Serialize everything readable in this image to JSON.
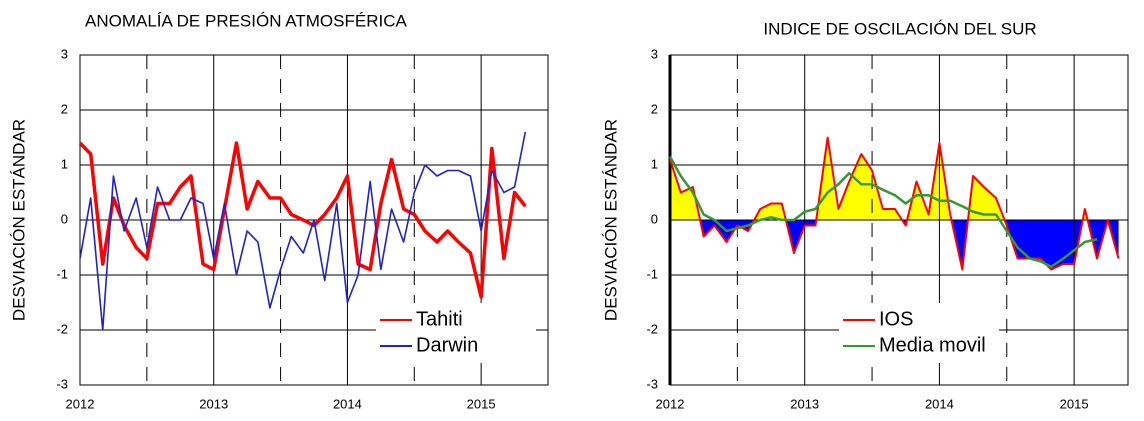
{
  "chart_data": [
    {
      "type": "line",
      "title": "ANOMALÍA DE PRESIÓN ATMOSFÉRICA",
      "y_label": "DESVIACIÓN ESTÁNDAR",
      "x": [
        2012,
        2012.08,
        2012.17,
        2012.25,
        2012.33,
        2012.42,
        2012.5,
        2012.58,
        2012.67,
        2012.75,
        2012.83,
        2012.92,
        2013,
        2013.08,
        2013.17,
        2013.25,
        2013.33,
        2013.42,
        2013.5,
        2013.58,
        2013.67,
        2013.75,
        2013.83,
        2013.92,
        2014,
        2014.08,
        2014.17,
        2014.25,
        2014.33,
        2014.42,
        2014.5,
        2014.58,
        2014.67,
        2014.75,
        2014.83,
        2014.92,
        2015,
        2015.08,
        2015.17,
        2015.25,
        2015.33
      ],
      "series": [
        {
          "name": "Tahiti",
          "color": "#ff0000",
          "values": [
            1.4,
            1.2,
            -0.8,
            0.4,
            -0.1,
            -0.5,
            -0.7,
            0.3,
            0.3,
            0.6,
            0.8,
            -0.8,
            -0.9,
            0.2,
            1.4,
            0.2,
            0.7,
            0.4,
            0.4,
            0.1,
            0,
            -0.1,
            0.1,
            0.4,
            0.8,
            -0.8,
            -0.9,
            0.3,
            1.1,
            0.2,
            0.1,
            -0.2,
            -0.4,
            -0.2,
            -0.4,
            -0.6,
            -1.4,
            1.3,
            -0.7,
            0.5,
            0.25
          ]
        },
        {
          "name": "Darwin",
          "color": "#2222cc",
          "values": [
            -0.7,
            0.4,
            -2.0,
            0.8,
            -0.2,
            0.4,
            -0.5,
            0.6,
            0,
            0,
            0.4,
            0.3,
            -0.7,
            0.3,
            -1.0,
            -0.2,
            -0.4,
            -1.6,
            -0.9,
            -0.3,
            -0.6,
            0,
            -1.1,
            0.3,
            -1.5,
            -1.0,
            0.7,
            -0.9,
            0.2,
            -0.4,
            0.5,
            1.0,
            0.8,
            0.9,
            0.9,
            0.8,
            -0.2,
            0.9,
            0.5,
            0.6,
            1.6
          ]
        }
      ],
      "xlim": [
        2012,
        2015.5
      ],
      "xticks": [
        2012,
        2013,
        2014,
        2015
      ],
      "minor_xticks": [
        2012.5,
        2013.5,
        2014.5
      ],
      "ylim": [
        -3,
        3
      ],
      "yticks": [
        -3,
        -2,
        -1,
        0,
        1,
        2,
        3
      ],
      "grid": true,
      "legend": "lower right"
    },
    {
      "type": "area",
      "title": "INDICE DE OSCILACIÓN DEL SUR",
      "y_label": "DESVIACIÓN ESTÁNDAR",
      "x": [
        2012,
        2012.08,
        2012.17,
        2012.25,
        2012.33,
        2012.42,
        2012.5,
        2012.58,
        2012.67,
        2012.75,
        2012.83,
        2012.92,
        2013,
        2013.08,
        2013.17,
        2013.25,
        2013.33,
        2013.42,
        2013.5,
        2013.58,
        2013.67,
        2013.75,
        2013.83,
        2013.92,
        2014,
        2014.08,
        2014.17,
        2014.25,
        2014.33,
        2014.42,
        2014.5,
        2014.58,
        2014.67,
        2014.75,
        2014.83,
        2014.92,
        2015,
        2015.08,
        2015.17,
        2015.25,
        2015.33
      ],
      "series": [
        {
          "name": "IOS",
          "color": "#ff0000",
          "fill_positive": "#ffff00",
          "fill_negative": "#0000ff",
          "values": [
            1.1,
            0.5,
            0.6,
            -0.3,
            -0.1,
            -0.4,
            -0.1,
            -0.2,
            0.2,
            0.3,
            0.3,
            -0.6,
            -0.1,
            -0.1,
            1.5,
            0.2,
            0.7,
            1.2,
            0.9,
            0.2,
            0.2,
            -0.1,
            0.7,
            0.1,
            1.4,
            0.1,
            -0.9,
            0.8,
            0.6,
            0.4,
            -0.1,
            -0.7,
            -0.7,
            -0.7,
            -0.9,
            -0.8,
            -0.8,
            0.2,
            -0.7,
            0,
            -0.7
          ]
        },
        {
          "name": "Media movil",
          "color": "#339933",
          "values": [
            1.15,
            0.8,
            0.5,
            0.1,
            0.0,
            -0.2,
            -0.15,
            -0.1,
            0.0,
            0.05,
            0.0,
            0.0,
            0.15,
            0.2,
            0.5,
            0.65,
            0.85,
            0.65,
            0.65,
            0.55,
            0.45,
            0.3,
            0.45,
            0.45,
            0.35,
            0.35,
            0.25,
            0.15,
            0.1,
            0.1,
            -0.2,
            -0.5,
            -0.7,
            -0.75,
            -0.85,
            -0.7,
            -0.55,
            -0.4,
            -0.35,
            null,
            null
          ]
        }
      ],
      "xlim": [
        2012,
        2015.4
      ],
      "xticks": [
        2012,
        2013,
        2014,
        2015
      ],
      "minor_xticks": [
        2012.5,
        2013.5,
        2014.5
      ],
      "ylim": [
        -3,
        3
      ],
      "yticks": [
        -3,
        -2,
        -1,
        0,
        1,
        2,
        3
      ],
      "grid": true,
      "legend": "lower center"
    }
  ]
}
